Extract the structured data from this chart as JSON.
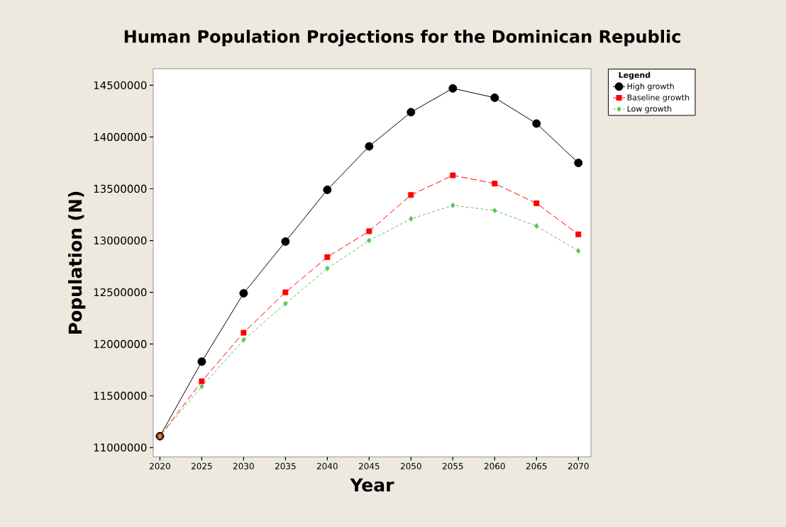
{
  "chart_data": {
    "type": "line",
    "title": "Human Population Projections for the Dominican Republic",
    "xlabel": "Year",
    "ylabel": "Population (N)",
    "legend_title": "Legend",
    "x": [
      2020,
      2025,
      2030,
      2035,
      2040,
      2045,
      2050,
      2055,
      2060,
      2065,
      2070
    ],
    "series": [
      {
        "name": "High growth",
        "color": "#000000",
        "marker": "circle",
        "line_style": "solid",
        "values": [
          11110000,
          11830000,
          12490000,
          12990000,
          13490000,
          13910000,
          14240000,
          14470000,
          14380000,
          14130000,
          13750000
        ]
      },
      {
        "name": "Baseline growth",
        "color": "#ff0000",
        "marker": "square",
        "line_style": "dashed",
        "values": [
          11110000,
          11640000,
          12110000,
          12500000,
          12840000,
          13090000,
          13440000,
          13630000,
          13550000,
          13360000,
          13060000
        ]
      },
      {
        "name": "Low growth",
        "color": "#5cc45c",
        "marker": "diamond",
        "line_style": "dotted",
        "values": [
          11110000,
          11590000,
          12040000,
          12390000,
          12730000,
          13000000,
          13210000,
          13340000,
          13290000,
          13140000,
          12900000
        ]
      }
    ],
    "xlim": [
      2019.2,
      2071.5
    ],
    "ylim": [
      10910000,
      14660000
    ],
    "xticks": [
      2020,
      2025,
      2030,
      2035,
      2040,
      2045,
      2050,
      2055,
      2060,
      2065,
      2070
    ],
    "yticks": [
      11000000,
      11500000,
      12000000,
      12500000,
      13000000,
      13500000,
      14000000,
      14500000
    ],
    "grid": false,
    "legend": "top right"
  }
}
